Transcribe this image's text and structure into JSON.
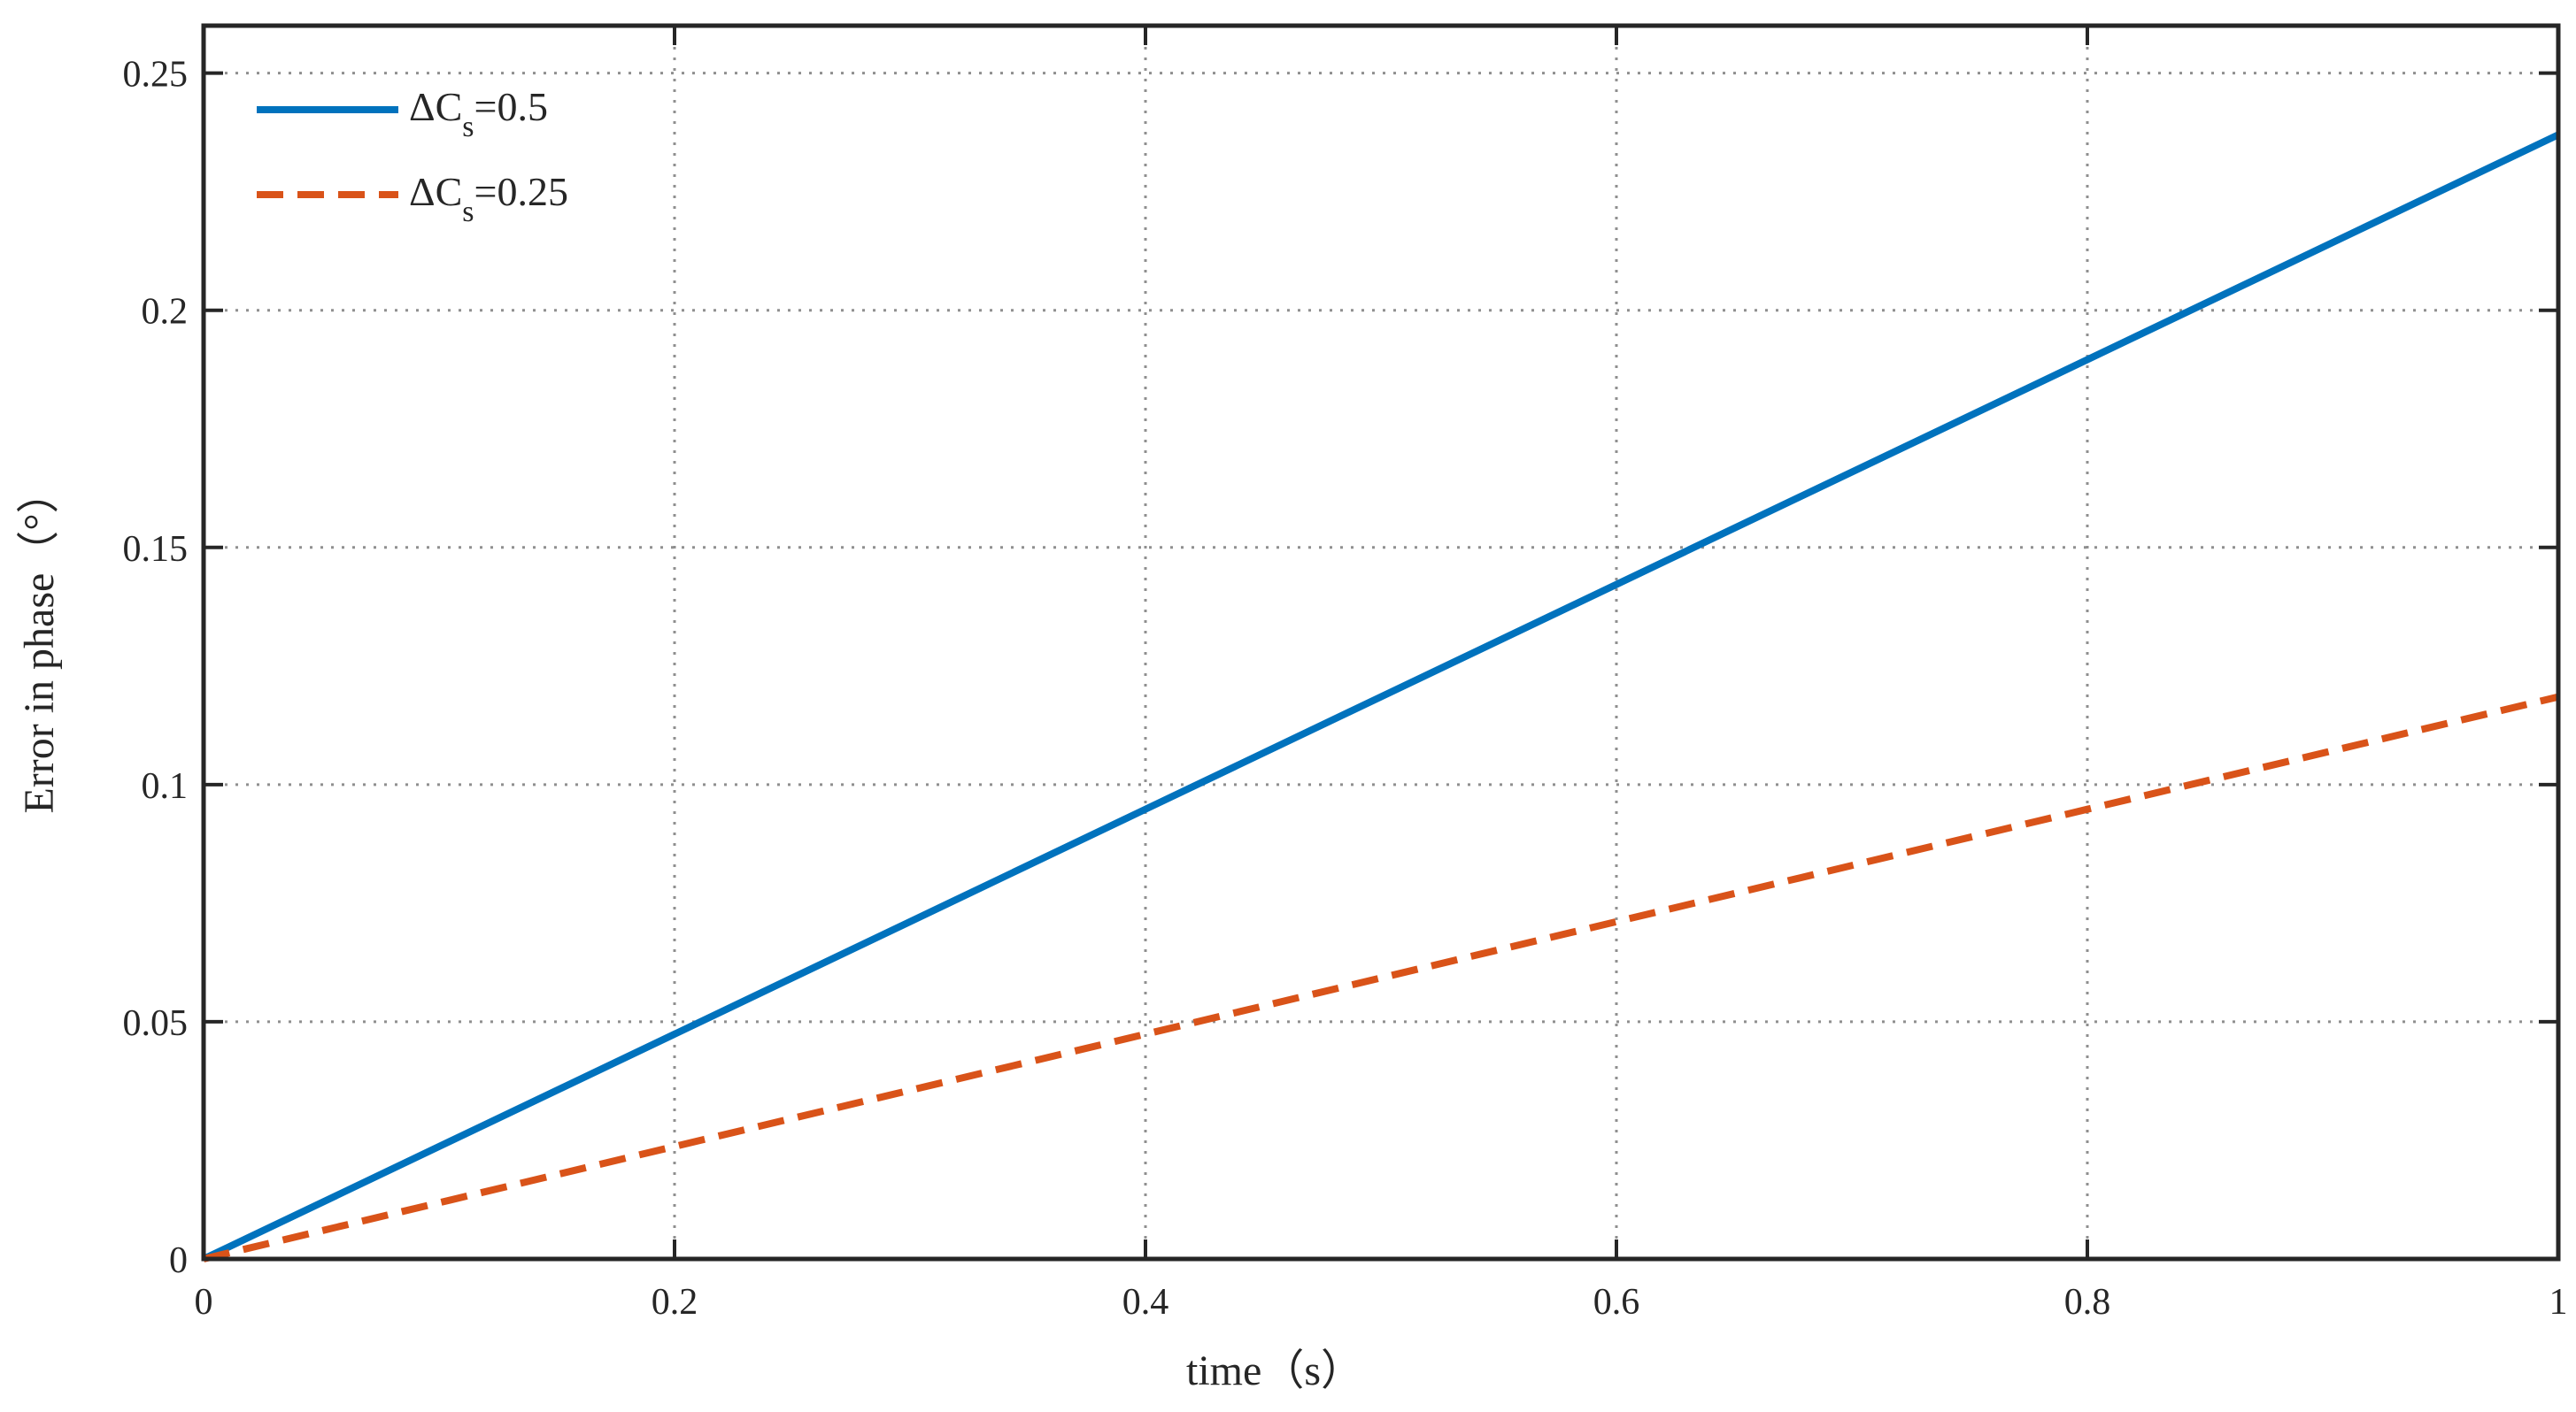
{
  "chart_data": {
    "type": "line",
    "title": "",
    "xlabel": "time（s）",
    "ylabel": "Error in phase（°）",
    "xlim": [
      0,
      1
    ],
    "ylim": [
      0,
      0.26
    ],
    "xticks": [
      0,
      0.2,
      0.4,
      0.6,
      0.8,
      1
    ],
    "xtick_labels": [
      "0",
      "0.2",
      "0.4",
      "0.6",
      "0.8",
      "1"
    ],
    "yticks": [
      0,
      0.05,
      0.1,
      0.15,
      0.2,
      0.25
    ],
    "ytick_labels": [
      "0",
      "0.05",
      "0.1",
      "0.15",
      "0.2",
      "0.25"
    ],
    "grid": true,
    "legend_position": "top-left",
    "series": [
      {
        "legend_prefix": "ΔC",
        "legend_subscript": "s",
        "legend_suffix": "=0.5",
        "color": "#0072BD",
        "line_style": "solid",
        "x": [
          0,
          0.2,
          0.4,
          0.6,
          0.8,
          1.0
        ],
        "y": [
          0,
          0.0474,
          0.0948,
          0.1422,
          0.1896,
          0.237
        ]
      },
      {
        "legend_prefix": "ΔC",
        "legend_subscript": "s",
        "legend_suffix": "=0.25",
        "color": "#D95319",
        "line_style": "dashed",
        "x": [
          0,
          0.2,
          0.4,
          0.6,
          0.8,
          1.0
        ],
        "y": [
          0,
          0.0237,
          0.0474,
          0.0711,
          0.0948,
          0.1185
        ]
      }
    ]
  }
}
